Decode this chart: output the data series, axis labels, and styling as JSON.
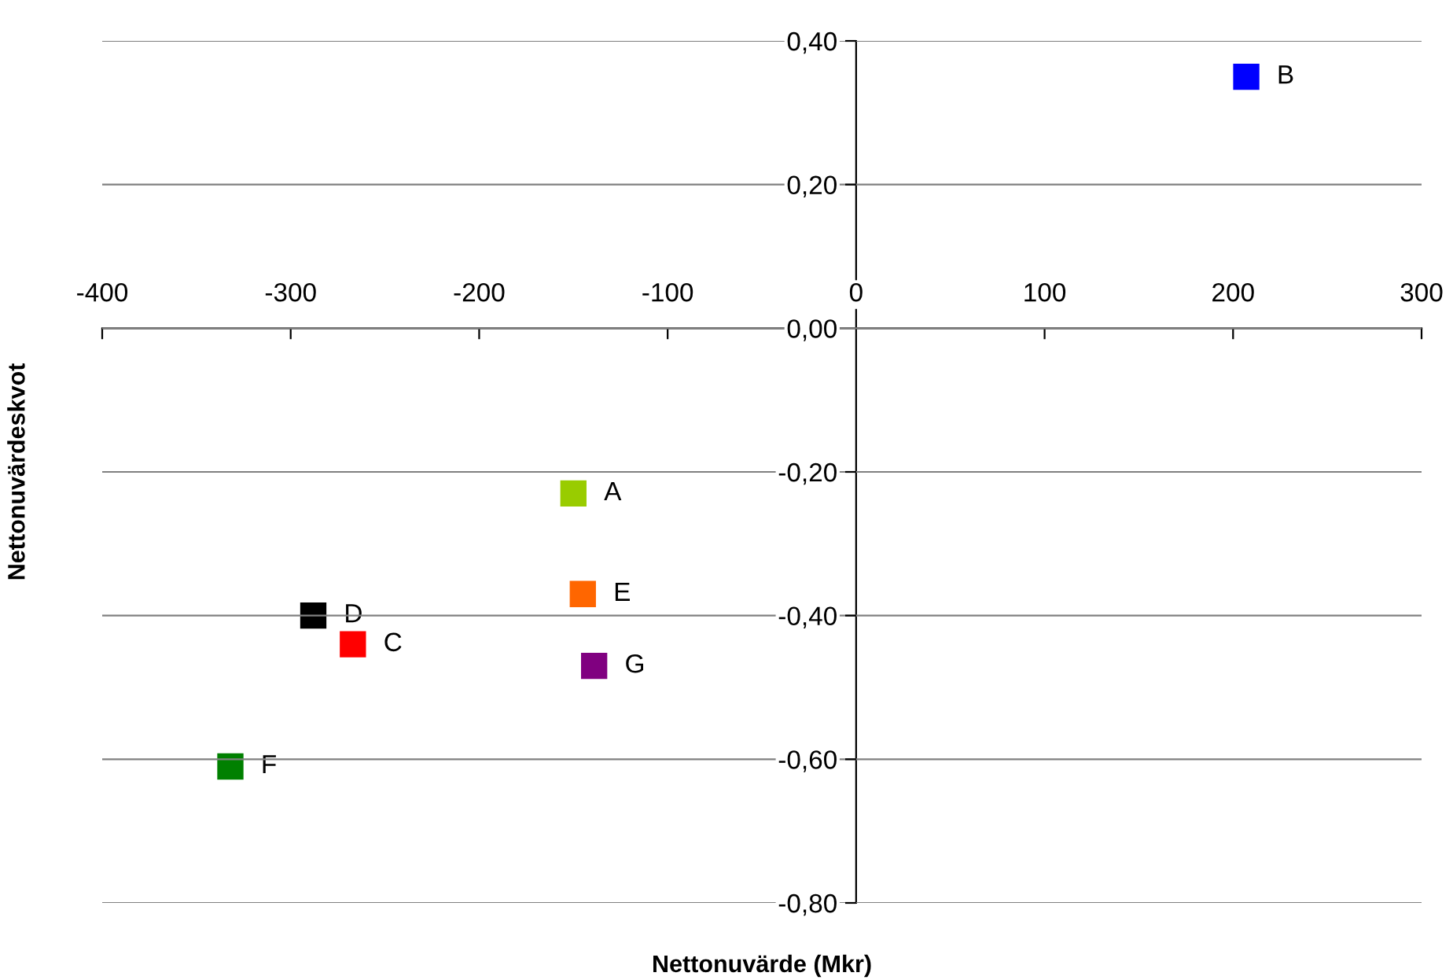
{
  "chart_data": {
    "type": "scatter",
    "xlabel": "Nettonuvärde (Mkr)",
    "ylabel": "Nettonuvärdeskvot",
    "series": [
      {
        "name": "A",
        "color": "#99cc00",
        "x": [
          -150
        ],
        "values": [
          -0.23
        ]
      },
      {
        "name": "B",
        "color": "#0000ff",
        "x": [
          207
        ],
        "values": [
          0.35
        ]
      },
      {
        "name": "C",
        "color": "#ff0000",
        "x": [
          -267
        ],
        "values": [
          -0.44
        ]
      },
      {
        "name": "D",
        "color": "#000000",
        "x": [
          -288
        ],
        "values": [
          -0.4
        ]
      },
      {
        "name": "E",
        "color": "#ff6600",
        "x": [
          -145
        ],
        "values": [
          -0.37
        ]
      },
      {
        "name": "F",
        "color": "#008000",
        "x": [
          -332
        ],
        "values": [
          -0.61
        ]
      },
      {
        "name": "G",
        "color": "#800080",
        "x": [
          -139
        ],
        "values": [
          -0.47
        ]
      }
    ],
    "xlim": [
      -400,
      300
    ],
    "xticks": [
      -400,
      -300,
      -200,
      -100,
      0,
      100,
      200,
      300
    ],
    "ylim": [
      -0.8,
      0.4
    ],
    "yticks": [
      {
        "value": -0.8,
        "label": "-0,80"
      },
      {
        "value": -0.6,
        "label": "-0,60"
      },
      {
        "value": -0.4,
        "label": "-0,40"
      },
      {
        "value": -0.2,
        "label": "-0,20"
      },
      {
        "value": 0,
        "label": "0,00"
      },
      {
        "value": 0.2,
        "label": "0,20"
      },
      {
        "value": 0.4,
        "label": "0,40"
      }
    ],
    "grid": "y",
    "marker": "square",
    "legend": false
  }
}
